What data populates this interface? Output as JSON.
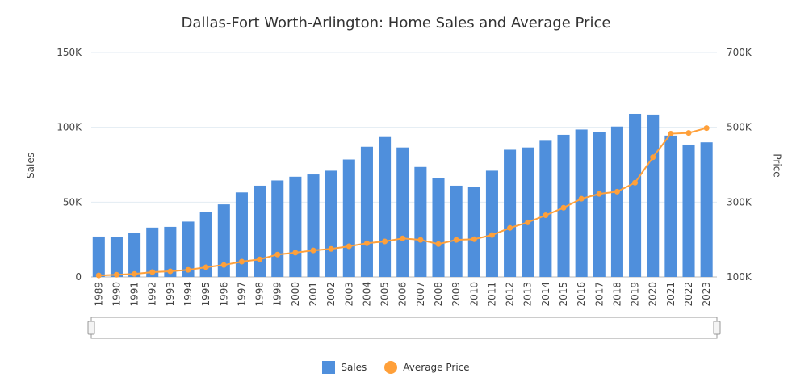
{
  "chart_data": {
    "type": "bar",
    "title": "Dallas-Fort Worth-Arlington: Home Sales and Average Price",
    "categories": [
      "1989",
      "1990",
      "1991",
      "1992",
      "1993",
      "1994",
      "1995",
      "1996",
      "1997",
      "1998",
      "1999",
      "2000",
      "2001",
      "2002",
      "2003",
      "2004",
      "2005",
      "2006",
      "2007",
      "2008",
      "2009",
      "2010",
      "2011",
      "2012",
      "2013",
      "2014",
      "2015",
      "2016",
      "2017",
      "2018",
      "2019",
      "2020",
      "2021",
      "2022",
      "2023"
    ],
    "series": [
      {
        "name": "Sales",
        "type": "bar",
        "axis": "left",
        "color": "#4f8fdc",
        "values": [
          27000,
          26500,
          29500,
          33000,
          33500,
          37000,
          43500,
          48500,
          56500,
          61000,
          64500,
          67000,
          68500,
          71000,
          78500,
          87000,
          93500,
          86500,
          73500,
          66000,
          61000,
          60000,
          71000,
          85000,
          86500,
          91000,
          95000,
          98500,
          97000,
          100500,
          109000,
          108500,
          94500,
          88500,
          90000
        ]
      },
      {
        "name": "Average Price",
        "type": "line",
        "axis": "right",
        "color": "#ffa03a",
        "values": [
          104000,
          106000,
          108000,
          113000,
          115000,
          119000,
          126000,
          132000,
          141000,
          147000,
          160000,
          165000,
          171000,
          175000,
          182000,
          190000,
          195000,
          203000,
          199000,
          188000,
          199000,
          201000,
          212000,
          231000,
          246000,
          265000,
          285000,
          309000,
          322000,
          328000,
          352000,
          420000,
          483000,
          485000,
          498000
        ]
      }
    ],
    "ylabel": "Sales",
    "y2label": "Price",
    "ylim": [
      0,
      150000
    ],
    "y2lim": [
      100000,
      700000
    ],
    "yticks": [
      "0",
      "50K",
      "100K",
      "150K"
    ],
    "y2ticks": [
      "100K",
      "300K",
      "500K",
      "700K"
    ],
    "grid": true,
    "legend": "bottom-center"
  }
}
